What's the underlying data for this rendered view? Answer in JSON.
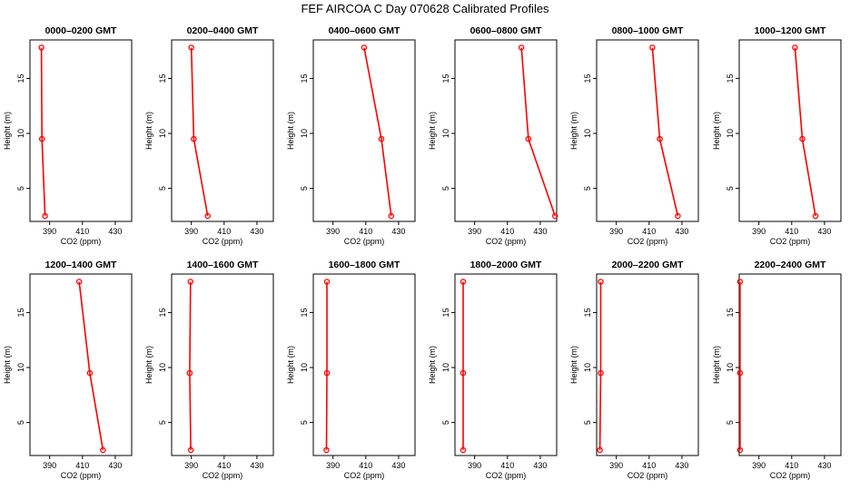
{
  "figure_title": "FEF AIRCOA C  Day 070628  Calibrated Profiles",
  "chart_data": {
    "type": "line",
    "title": "FEF AIRCOA C  Day 070628  Calibrated Profiles",
    "xlabel": "CO2 (ppm)",
    "ylabel": "Height (m)",
    "xlim": [
      378,
      440
    ],
    "ylim": [
      2,
      18.5
    ],
    "xticks": [
      390,
      410,
      430
    ],
    "yticks": [
      5,
      10,
      15
    ],
    "grid": false,
    "color": "#ff0000",
    "panels": [
      {
        "title": "0000–0200 GMT",
        "points": [
          {
            "x": 385.0,
            "y": 17.8
          },
          {
            "x": 385.3,
            "y": 9.5
          },
          {
            "x": 387.2,
            "y": 2.5
          }
        ]
      },
      {
        "title": "0200–0400 GMT",
        "points": [
          {
            "x": 390.0,
            "y": 17.8
          },
          {
            "x": 391.5,
            "y": 9.5
          },
          {
            "x": 400.0,
            "y": 2.5
          }
        ]
      },
      {
        "title": "0400–0600 GMT",
        "points": [
          {
            "x": 409.0,
            "y": 17.8
          },
          {
            "x": 419.5,
            "y": 9.5
          },
          {
            "x": 425.5,
            "y": 2.5
          }
        ]
      },
      {
        "title": "0600–0800 GMT",
        "points": [
          {
            "x": 418.5,
            "y": 17.8
          },
          {
            "x": 422.8,
            "y": 9.5
          },
          {
            "x": 439.0,
            "y": 2.5
          }
        ]
      },
      {
        "title": "0800–1000 GMT",
        "points": [
          {
            "x": 412.0,
            "y": 17.8
          },
          {
            "x": 416.5,
            "y": 9.5
          },
          {
            "x": 427.5,
            "y": 2.5
          }
        ]
      },
      {
        "title": "1000–1200 GMT",
        "points": [
          {
            "x": 412.0,
            "y": 17.8
          },
          {
            "x": 416.5,
            "y": 9.5
          },
          {
            "x": 424.5,
            "y": 2.5
          }
        ]
      },
      {
        "title": "1200–1400 GMT",
        "points": [
          {
            "x": 408.0,
            "y": 17.8
          },
          {
            "x": 414.5,
            "y": 9.5
          },
          {
            "x": 422.5,
            "y": 2.5
          }
        ]
      },
      {
        "title": "1400–1600 GMT",
        "points": [
          {
            "x": 389.5,
            "y": 17.8
          },
          {
            "x": 389.0,
            "y": 9.5
          },
          {
            "x": 389.7,
            "y": 2.5
          }
        ]
      },
      {
        "title": "1600–1800 GMT",
        "points": [
          {
            "x": 386.3,
            "y": 17.8
          },
          {
            "x": 386.3,
            "y": 9.5
          },
          {
            "x": 386.0,
            "y": 2.5
          }
        ]
      },
      {
        "title": "1800–2000 GMT",
        "points": [
          {
            "x": 383.0,
            "y": 17.8
          },
          {
            "x": 383.0,
            "y": 9.5
          },
          {
            "x": 383.0,
            "y": 2.5
          }
        ]
      },
      {
        "title": "2000–2200 GMT",
        "points": [
          {
            "x": 380.5,
            "y": 17.8
          },
          {
            "x": 380.5,
            "y": 9.5
          },
          {
            "x": 380.0,
            "y": 2.5
          }
        ]
      },
      {
        "title": "2200–2400 GMT",
        "points": [
          {
            "x": 378.5,
            "y": 17.8
          },
          {
            "x": 378.5,
            "y": 9.5
          },
          {
            "x": 378.5,
            "y": 2.5
          }
        ]
      }
    ]
  }
}
